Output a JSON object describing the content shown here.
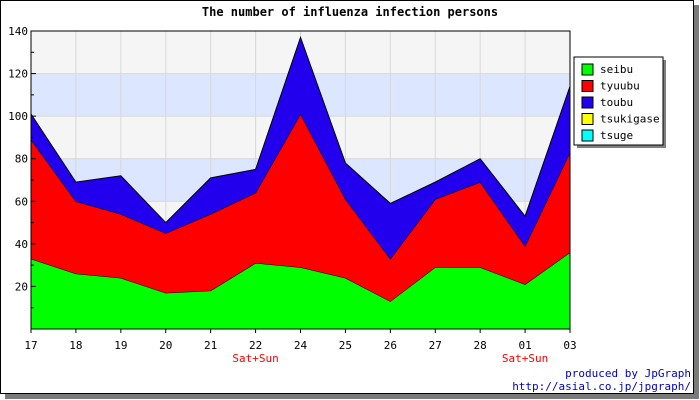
{
  "chart_data": {
    "type": "area",
    "stacked": true,
    "title": "The number of influenza infection persons",
    "categories": [
      "17",
      "18",
      "19",
      "20",
      "21",
      "22",
      "24",
      "25",
      "26",
      "27",
      "28",
      "01",
      "03"
    ],
    "weekend_labels": [
      "",
      "",
      "",
      "",
      "",
      "Sat+Sun",
      "",
      "",
      "",
      "",
      "",
      "Sat+Sun",
      ""
    ],
    "series": [
      {
        "name": "seibu",
        "color": "#00ff00",
        "values": [
          33,
          26,
          24,
          17,
          18,
          31,
          29,
          24,
          13,
          29,
          29,
          21,
          36
        ]
      },
      {
        "name": "tyuubu",
        "color": "#ff0000",
        "values": [
          56,
          34,
          30,
          28,
          36,
          33,
          72,
          37,
          20,
          32,
          40,
          18,
          47
        ]
      },
      {
        "name": "toubu",
        "color": "#2200ee",
        "values": [
          12,
          9,
          18,
          5,
          17,
          11,
          36,
          17,
          26,
          8,
          11,
          14,
          31
        ]
      },
      {
        "name": "tsukigase",
        "color": "#ffff00",
        "values": [
          0,
          0,
          0,
          0,
          0,
          0,
          0,
          0,
          0,
          0,
          0,
          0,
          0
        ]
      },
      {
        "name": "tsuge",
        "color": "#00ffff",
        "values": [
          0,
          0,
          0,
          0,
          0,
          0,
          0,
          0,
          0,
          0,
          0,
          0,
          0
        ]
      }
    ],
    "ylim": [
      0,
      140
    ],
    "yticks": [
      20,
      40,
      60,
      80,
      100,
      120,
      140
    ],
    "grid": true,
    "legend_position": "right"
  },
  "credits": {
    "line1": "produced by JpGraph",
    "line2": "http://asial.co.jp/jpgraph/"
  }
}
